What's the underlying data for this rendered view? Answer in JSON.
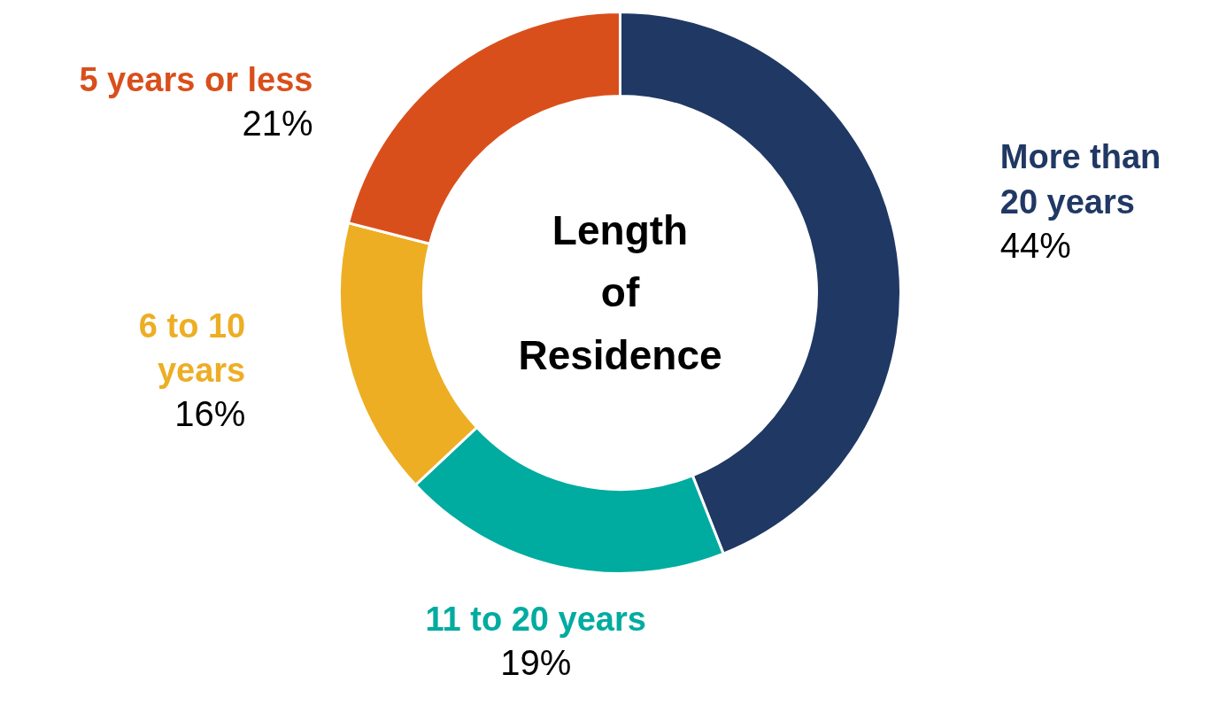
{
  "chart_data": {
    "type": "donut",
    "title": "Length of Residence",
    "categories": [
      "More than 20 years",
      "11 to 20 years",
      "6 to 10 years",
      "5 years or less"
    ],
    "values": [
      44,
      19,
      16,
      21
    ],
    "colors": [
      "#203864",
      "#00aba0",
      "#edae24",
      "#d94f1b"
    ],
    "value_labels": [
      "44%",
      "19%",
      "16%",
      "21%"
    ]
  }
}
